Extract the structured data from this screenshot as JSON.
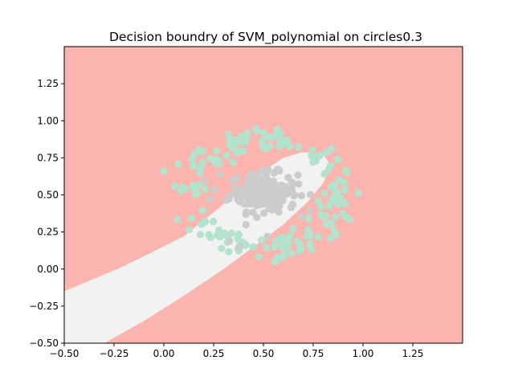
{
  "chart_data": {
    "type": "scatter",
    "title": "Decision boundry of SVM_polynomial on circles0.3",
    "xlabel": "",
    "ylabel": "",
    "xlim": [
      -0.5,
      1.5
    ],
    "ylim": [
      -0.5,
      1.5
    ],
    "xticks": [
      -0.5,
      -0.25,
      0.0,
      0.25,
      0.5,
      0.75,
      1.0,
      1.25
    ],
    "xtick_labels": [
      "−0.50",
      "−0.25",
      "0.00",
      "0.25",
      "0.50",
      "0.75",
      "1.00",
      "1.25"
    ],
    "yticks": [
      -0.5,
      -0.25,
      0.0,
      0.25,
      0.5,
      0.75,
      1.0,
      1.25
    ],
    "ytick_labels": [
      "−0.50",
      "−0.25",
      "0.00",
      "0.25",
      "0.50",
      "0.75",
      "1.00",
      "1.25"
    ],
    "grid": false,
    "regions": [
      {
        "class": "outer",
        "color": "#fbb4ae"
      },
      {
        "class": "inner",
        "color": "#f2f2f2"
      }
    ],
    "decision_band": {
      "inner_region_polygon": [
        [
          -0.5,
          -0.5
        ],
        [
          -0.5,
          -0.15
        ],
        [
          -0.2,
          0.02
        ],
        [
          0.1,
          0.22
        ],
        [
          0.32,
          0.46
        ],
        [
          0.5,
          0.66
        ],
        [
          0.6,
          0.75
        ],
        [
          0.7,
          0.79
        ],
        [
          0.8,
          0.77
        ],
        [
          0.84,
          0.7
        ],
        [
          0.8,
          0.58
        ],
        [
          0.72,
          0.45
        ],
        [
          0.6,
          0.3
        ],
        [
          0.45,
          0.15
        ],
        [
          0.3,
          0.0
        ],
        [
          0.1,
          -0.18
        ],
        [
          -0.1,
          -0.35
        ],
        [
          -0.3,
          -0.5
        ]
      ]
    },
    "series": [
      {
        "color": "#b3e2cd",
        "marker": "circle",
        "ring": {
          "cx": 0.5,
          "cy": 0.5,
          "r": 0.38,
          "n": 180,
          "noise": 0.045
        }
      },
      {
        "color": "#cccccc",
        "marker": "circle",
        "blob": {
          "cx": 0.5,
          "cy": 0.52,
          "sx": 0.085,
          "sy": 0.065,
          "n": 180
        }
      }
    ],
    "extra_points": [
      {
        "series": 0,
        "x": 0.0,
        "y": 0.66
      },
      {
        "series": 1,
        "x": 0.23,
        "y": 0.47
      },
      {
        "series": 1,
        "x": 0.28,
        "y": 0.64
      },
      {
        "series": 1,
        "x": 0.38,
        "y": 0.15
      },
      {
        "series": 1,
        "x": 0.33,
        "y": 0.19
      },
      {
        "series": 1,
        "x": 0.52,
        "y": 0.22
      }
    ]
  }
}
